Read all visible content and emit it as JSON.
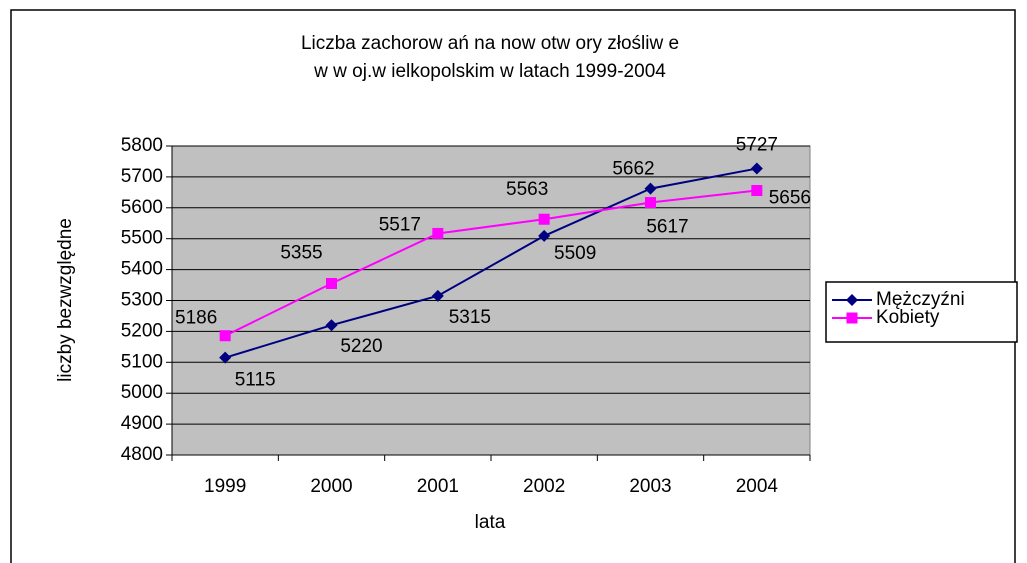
{
  "chart_data": {
    "type": "line",
    "title": [
      "Liczba zachorow ań na now otw ory złośliw e",
      "w w oj.w ielkopolskim w latach 1999-2004"
    ],
    "xlabel": "lata",
    "ylabel": "liczby bezwzględne",
    "categories": [
      "1999",
      "2000",
      "2001",
      "2002",
      "2003",
      "2004"
    ],
    "series": [
      {
        "name": "Mężczyźni",
        "color": "#000080",
        "marker": "diamond",
        "values": [
          5115,
          5220,
          5315,
          5509,
          5662,
          5727
        ]
      },
      {
        "name": "Kobiety",
        "color": "#ff00ff",
        "marker": "square",
        "values": [
          5186,
          5355,
          5517,
          5563,
          5617,
          5656
        ]
      }
    ],
    "ylim": [
      4800,
      5800
    ],
    "yticks": [
      4800,
      4900,
      5000,
      5100,
      5200,
      5300,
      5400,
      5500,
      5600,
      5700,
      5800
    ],
    "grid": true,
    "legend": "right"
  }
}
